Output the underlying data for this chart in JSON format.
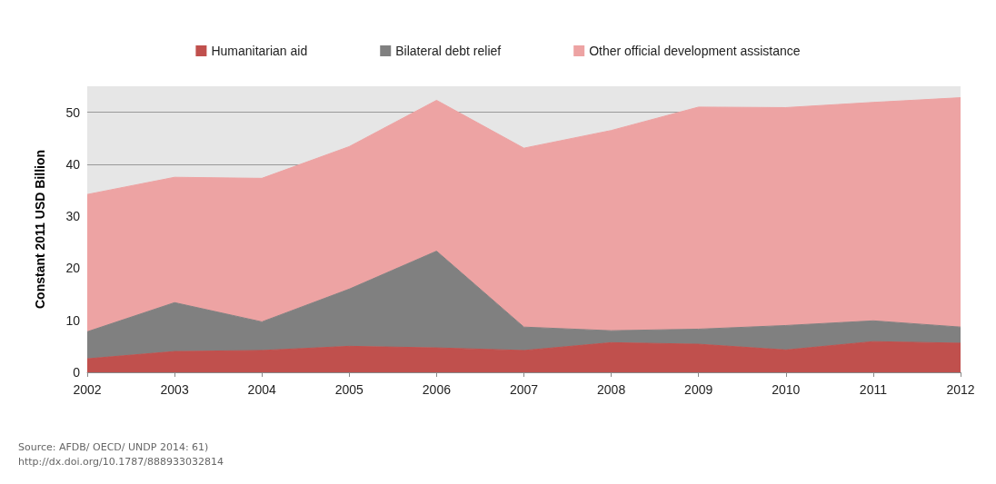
{
  "chart_data": {
    "type": "area",
    "stacked": true,
    "ylabel": "Constant 2011 USD Billion",
    "categories": [
      "2002",
      "2003",
      "2004",
      "2005",
      "2006",
      "2007",
      "2008",
      "2009",
      "2010",
      "2011",
      "2012"
    ],
    "series": [
      {
        "name": "Humanitarian aid",
        "color": "#c0504d",
        "values": [
          2.6,
          4.0,
          4.2,
          5.0,
          4.7,
          4.2,
          5.7,
          5.4,
          4.3,
          5.9,
          5.6
        ]
      },
      {
        "name": "Bilateral debt relief",
        "color": "#808080",
        "values": [
          5.2,
          9.4,
          5.5,
          11.0,
          18.6,
          4.5,
          2.3,
          2.9,
          4.7,
          4.0,
          3.1
        ]
      },
      {
        "name": "Other official development assistance",
        "color": "#eda3a3",
        "values": [
          26.4,
          24.1,
          27.6,
          27.4,
          29.0,
          34.4,
          38.5,
          42.7,
          41.9,
          42.0,
          44.1
        ]
      }
    ],
    "ylim": [
      0,
      55
    ],
    "yticks": [
      0,
      10,
      20,
      30,
      40,
      50
    ],
    "grid": "y",
    "legend": "top",
    "annotations": [
      "Source: AFDB/ OECD/ UNDP 2014: 61)",
      "http://dx.doi.org/10.1787/888933032814"
    ]
  }
}
